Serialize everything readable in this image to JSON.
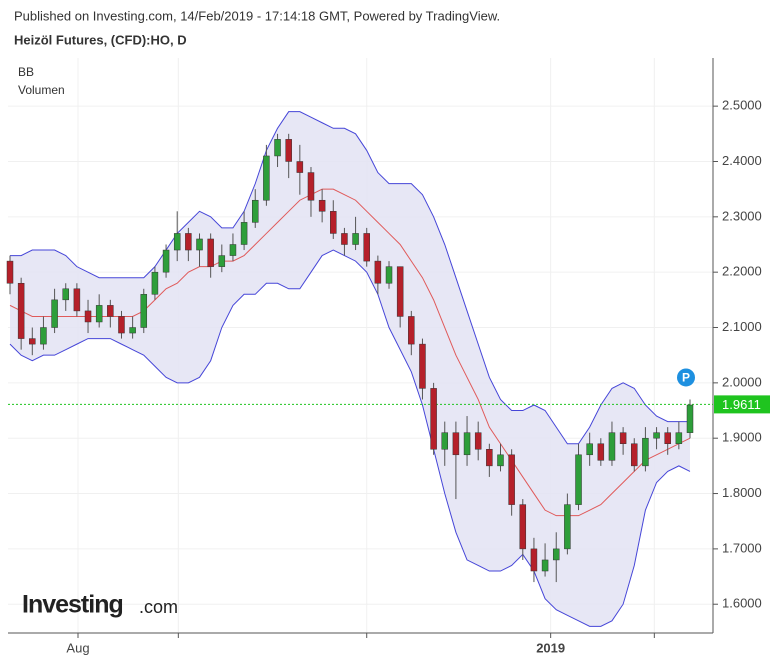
{
  "header": {
    "published": "Published on Investing.com, 14/Feb/2019 - 17:14:18 GMT, Powered by TradingView.",
    "title": "Heizöl Futures, (CFD):HO, D"
  },
  "chart_data": {
    "type": "candlestick",
    "legend_items": [
      "BB",
      "Volumen"
    ],
    "open": [
      2.22,
      2.18,
      2.08,
      2.07,
      2.1,
      2.15,
      2.17,
      2.13,
      2.11,
      2.14,
      2.12,
      2.09,
      2.1,
      2.16,
      2.2,
      2.24,
      2.27,
      2.24,
      2.26,
      2.21,
      2.23,
      2.25,
      2.29,
      2.33,
      2.41,
      2.44,
      2.4,
      2.38,
      2.33,
      2.31,
      2.27,
      2.25,
      2.27,
      2.22,
      2.18,
      2.21,
      2.12,
      2.07,
      1.99,
      1.88,
      1.91,
      1.87,
      1.91,
      1.88,
      1.85,
      1.87,
      1.78,
      1.7,
      1.66,
      1.68,
      1.7,
      1.78,
      1.87,
      1.89,
      1.86,
      1.91,
      1.89,
      1.85,
      1.9,
      1.91,
      1.89,
      1.91
    ],
    "high": [
      2.23,
      2.19,
      2.1,
      2.12,
      2.17,
      2.18,
      2.18,
      2.15,
      2.16,
      2.15,
      2.13,
      2.12,
      2.17,
      2.21,
      2.25,
      2.31,
      2.28,
      2.27,
      2.27,
      2.25,
      2.27,
      2.31,
      2.35,
      2.43,
      2.45,
      2.45,
      2.43,
      2.39,
      2.35,
      2.33,
      2.28,
      2.3,
      2.28,
      2.23,
      2.22,
      2.21,
      2.13,
      2.08,
      2.0,
      1.93,
      1.93,
      1.94,
      1.93,
      1.89,
      1.89,
      1.88,
      1.79,
      1.72,
      1.71,
      1.73,
      1.8,
      1.89,
      1.91,
      1.9,
      1.93,
      1.92,
      1.9,
      1.92,
      1.92,
      1.92,
      1.93,
      1.97
    ],
    "low": [
      2.16,
      2.06,
      2.05,
      2.06,
      2.09,
      2.13,
      2.12,
      2.09,
      2.1,
      2.1,
      2.08,
      2.08,
      2.09,
      2.15,
      2.19,
      2.22,
      2.22,
      2.21,
      2.19,
      2.2,
      2.22,
      2.24,
      2.28,
      2.32,
      2.39,
      2.37,
      2.34,
      2.3,
      2.29,
      2.26,
      2.23,
      2.24,
      2.21,
      2.16,
      2.17,
      2.1,
      2.05,
      1.97,
      1.87,
      1.85,
      1.79,
      1.85,
      1.86,
      1.83,
      1.84,
      1.76,
      1.68,
      1.64,
      1.65,
      1.64,
      1.69,
      1.77,
      1.85,
      1.85,
      1.85,
      1.87,
      1.84,
      1.84,
      1.88,
      1.87,
      1.88,
      1.9
    ],
    "close": [
      2.18,
      2.08,
      2.07,
      2.1,
      2.15,
      2.17,
      2.13,
      2.11,
      2.14,
      2.12,
      2.09,
      2.1,
      2.16,
      2.2,
      2.24,
      2.27,
      2.24,
      2.26,
      2.21,
      2.23,
      2.25,
      2.29,
      2.33,
      2.41,
      2.44,
      2.4,
      2.38,
      2.33,
      2.31,
      2.27,
      2.25,
      2.27,
      2.22,
      2.18,
      2.21,
      2.12,
      2.07,
      1.99,
      1.88,
      1.91,
      1.87,
      1.91,
      1.88,
      1.85,
      1.87,
      1.78,
      1.7,
      1.66,
      1.68,
      1.7,
      1.78,
      1.87,
      1.89,
      1.86,
      1.91,
      1.89,
      1.85,
      1.9,
      1.91,
      1.89,
      1.91,
      1.96
    ],
    "up_color": "#2e9e3a",
    "down_color": "#b5202a",
    "bands": {
      "upper": [
        2.23,
        2.23,
        2.24,
        2.24,
        2.24,
        2.23,
        2.21,
        2.2,
        2.19,
        2.19,
        2.19,
        2.19,
        2.19,
        2.21,
        2.24,
        2.27,
        2.29,
        2.31,
        2.3,
        2.28,
        2.28,
        2.31,
        2.36,
        2.42,
        2.46,
        2.49,
        2.49,
        2.48,
        2.47,
        2.46,
        2.46,
        2.45,
        2.42,
        2.38,
        2.36,
        2.36,
        2.36,
        2.34,
        2.3,
        2.25,
        2.19,
        2.13,
        2.07,
        2.01,
        1.97,
        1.95,
        1.95,
        1.96,
        1.95,
        1.92,
        1.89,
        1.89,
        1.92,
        1.96,
        1.99,
        2.0,
        1.99,
        1.96,
        1.94,
        1.93,
        1.93,
        1.93
      ],
      "middle": [
        2.14,
        2.13,
        2.12,
        2.12,
        2.12,
        2.12,
        2.12,
        2.12,
        2.12,
        2.12,
        2.12,
        2.12,
        2.13,
        2.15,
        2.17,
        2.18,
        2.2,
        2.21,
        2.21,
        2.22,
        2.22,
        2.23,
        2.25,
        2.27,
        2.29,
        2.31,
        2.33,
        2.34,
        2.35,
        2.35,
        2.34,
        2.33,
        2.31,
        2.29,
        2.27,
        2.25,
        2.22,
        2.19,
        2.15,
        2.1,
        2.05,
        2.01,
        1.97,
        1.92,
        1.89,
        1.86,
        1.83,
        1.8,
        1.77,
        1.76,
        1.76,
        1.76,
        1.77,
        1.78,
        1.8,
        1.82,
        1.84,
        1.86,
        1.87,
        1.88,
        1.89,
        1.9
      ],
      "lower": [
        2.07,
        2.05,
        2.04,
        2.05,
        2.05,
        2.06,
        2.07,
        2.08,
        2.08,
        2.08,
        2.07,
        2.06,
        2.05,
        2.03,
        2.01,
        2.0,
        2.0,
        2.01,
        2.04,
        2.1,
        2.14,
        2.16,
        2.16,
        2.18,
        2.18,
        2.17,
        2.17,
        2.2,
        2.23,
        2.24,
        2.23,
        2.22,
        2.2,
        2.16,
        2.1,
        2.06,
        2.02,
        1.96,
        1.88,
        1.8,
        1.73,
        1.68,
        1.67,
        1.66,
        1.66,
        1.67,
        1.69,
        1.66,
        1.61,
        1.59,
        1.58,
        1.57,
        1.56,
        1.56,
        1.57,
        1.6,
        1.67,
        1.77,
        1.82,
        1.84,
        1.85,
        1.84
      ],
      "band_color": "#4646d8",
      "middle_color": "#e05a5a",
      "fill": "#e3e3f3"
    },
    "last_price": 1.9611,
    "last_price_color": "#1fc41f",
    "marker": "P",
    "marker_color": "#1e90e0",
    "ylim": [
      1.548,
      2.587
    ],
    "yticks": [
      {
        "value": 1.6,
        "label": "1.6000"
      },
      {
        "value": 1.7,
        "label": "1.7000"
      },
      {
        "value": 1.8,
        "label": "1.8000"
      },
      {
        "value": 1.9,
        "label": "1.9000"
      },
      {
        "value": 2.0,
        "label": "2.0000"
      },
      {
        "value": 2.1,
        "label": "2.1000"
      },
      {
        "value": 2.2,
        "label": "2.2000"
      },
      {
        "value": 2.3,
        "label": "2.3000"
      },
      {
        "value": 2.4,
        "label": "2.4000"
      },
      {
        "value": 2.5,
        "label": "2.5000"
      }
    ],
    "xticks": [
      {
        "value": 6.1,
        "label": "Aug"
      },
      {
        "value": 48.5,
        "label": "2019"
      }
    ],
    "xminor_ticks": [
      15.1,
      32,
      57.8
    ],
    "grid": true
  },
  "logo": {
    "brand": "Investing",
    "suffix": ".com"
  }
}
